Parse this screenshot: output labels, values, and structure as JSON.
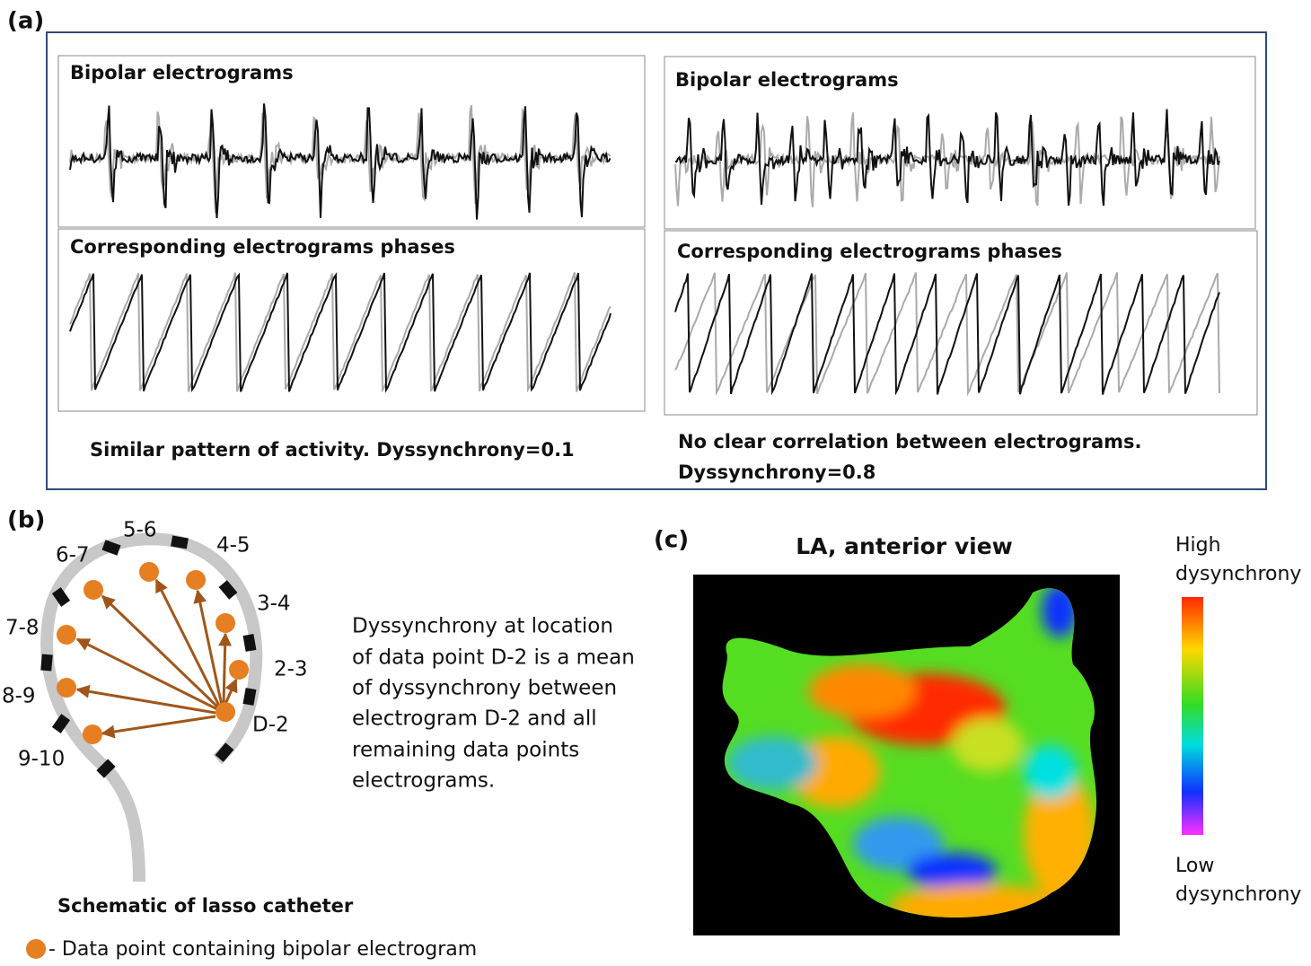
{
  "panel_a": {
    "label": "(a)",
    "left": {
      "top_title": "Bipolar electrograms",
      "bottom_title": "Corresponding electrograms phases",
      "caption": "Similar pattern of activity. Dyssynchrony=0.1"
    },
    "right": {
      "top_title": "Bipolar electrograms",
      "bottom_title": "Corresponding electrograms phases",
      "caption_lines": [
        "No clear correlation between electrograms.",
        "Dyssynchrony=0.8"
      ]
    }
  },
  "panel_b": {
    "label": "(b)",
    "electrode_labels": [
      "5-6",
      "4-5",
      "6-7",
      "3-4",
      "7-8",
      "2-3",
      "8-9",
      "D-2",
      "9-10"
    ],
    "description_lines": [
      "Dyssynchrony at location",
      "of data point D-2 is a mean",
      "of dyssynchrony between",
      "electrogram D-2 and all",
      "remaining data points",
      "electrograms."
    ],
    "schematic_caption": "Schematic of lasso catheter",
    "legend": "- Data point containing bipolar electrogram"
  },
  "panel_c": {
    "label": "(c)",
    "title": "LA, anterior view",
    "colorbar_high": [
      "High",
      "dysynchrony"
    ],
    "colorbar_low": [
      "Low",
      "dysynchrony"
    ]
  }
}
